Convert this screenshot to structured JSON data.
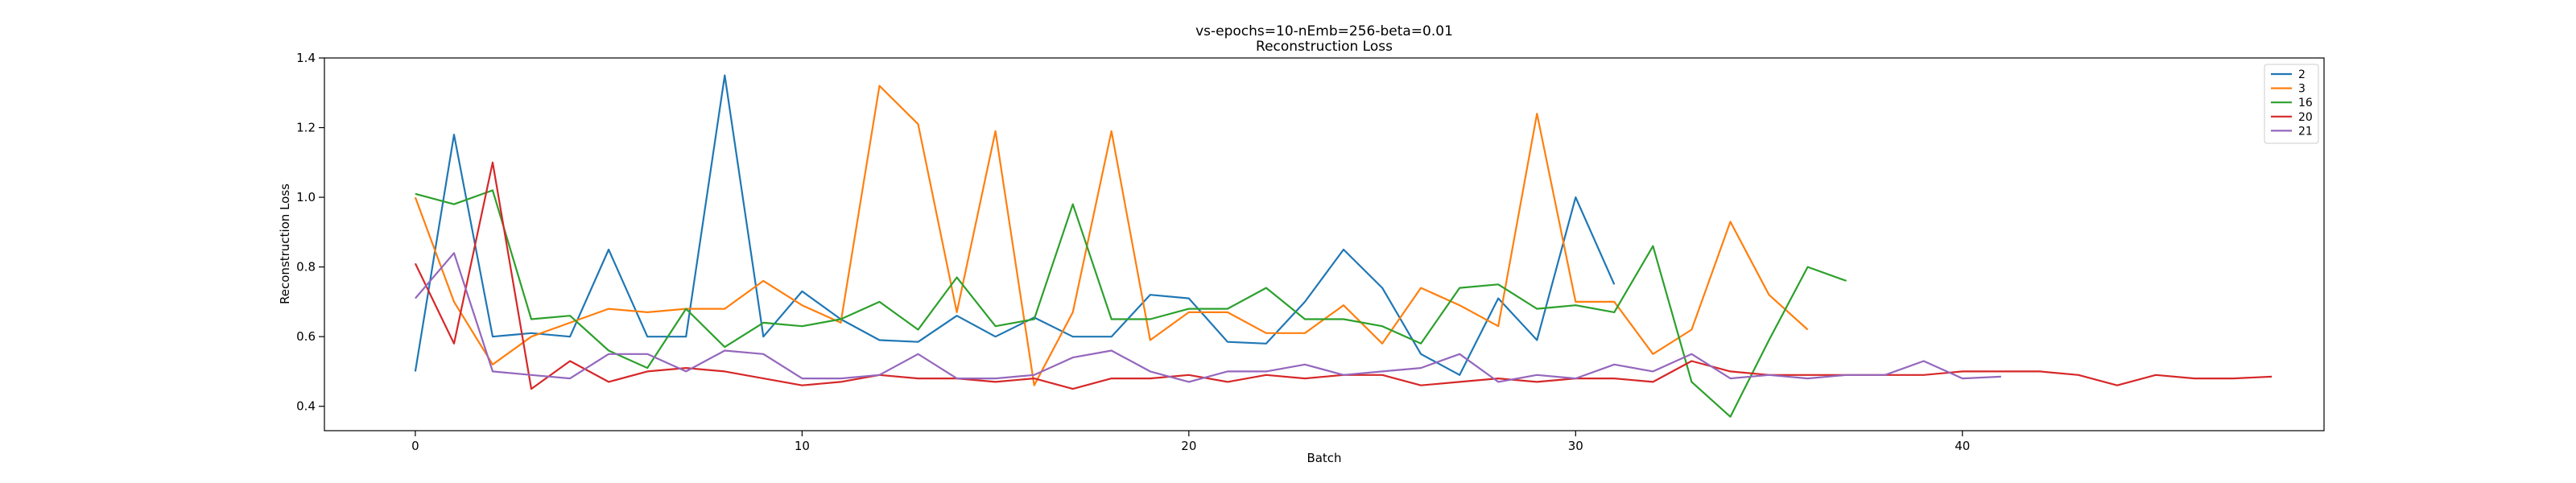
{
  "chart_data": {
    "type": "line",
    "title": "vs-epochs=10-nEmb=256-beta=0.01",
    "subtitle": "Reconstruction Loss",
    "xlabel": "Batch",
    "ylabel": "Reconstruction Loss",
    "xlim": [
      -2.35,
      49.35
    ],
    "ylim": [
      0.33,
      1.4
    ],
    "xticks": [
      0,
      10,
      20,
      30,
      40
    ],
    "yticks": [
      0.4,
      0.6,
      0.8,
      1.0,
      1.2,
      1.4
    ],
    "xtick_labels": [
      "0",
      "10",
      "20",
      "30",
      "40"
    ],
    "ytick_labels": [
      "0.4",
      "0.6",
      "0.8",
      "1.0",
      "1.2",
      "1.4"
    ],
    "grid": false,
    "legend_position": "top-right",
    "series": [
      {
        "name": "2",
        "color": "#1f77b4",
        "values": [
          0.5,
          1.18,
          0.6,
          0.61,
          0.6,
          0.85,
          0.6,
          0.6,
          1.35,
          0.6,
          0.73,
          0.65,
          0.59,
          0.585,
          0.66,
          0.6,
          0.655,
          0.6,
          0.6,
          0.72,
          0.71,
          0.585,
          0.58,
          0.7,
          0.85,
          0.74,
          0.55,
          0.49,
          0.71,
          0.59,
          1.0,
          0.75
        ]
      },
      {
        "name": "3",
        "color": "#ff7f0e",
        "values": [
          1.0,
          0.7,
          0.52,
          0.6,
          0.64,
          0.68,
          0.67,
          0.68,
          0.68,
          0.76,
          0.69,
          0.64,
          1.32,
          1.21,
          0.67,
          1.19,
          0.46,
          0.67,
          1.19,
          0.59,
          0.67,
          0.67,
          0.61,
          0.61,
          0.69,
          0.58,
          0.74,
          0.69,
          0.63,
          1.24,
          0.7,
          0.7,
          0.55,
          0.62,
          0.93,
          0.72,
          0.62
        ]
      },
      {
        "name": "16",
        "color": "#2ca02c",
        "values": [
          1.01,
          0.98,
          1.02,
          0.65,
          0.66,
          0.56,
          0.51,
          0.68,
          0.57,
          0.64,
          0.63,
          0.65,
          0.7,
          0.62,
          0.77,
          0.63,
          0.65,
          0.98,
          0.65,
          0.65,
          0.68,
          0.68,
          0.74,
          0.65,
          0.65,
          0.63,
          0.58,
          0.74,
          0.75,
          0.68,
          0.69,
          0.67,
          0.86,
          0.47,
          0.37,
          0.59,
          0.8,
          0.76
        ]
      },
      {
        "name": "20",
        "color": "#d62728",
        "values": [
          0.81,
          0.58,
          1.1,
          0.45,
          0.53,
          0.47,
          0.5,
          0.51,
          0.5,
          0.48,
          0.46,
          0.47,
          0.49,
          0.48,
          0.48,
          0.47,
          0.48,
          0.45,
          0.48,
          0.48,
          0.49,
          0.47,
          0.49,
          0.48,
          0.49,
          0.49,
          0.46,
          0.47,
          0.48,
          0.47,
          0.48,
          0.48,
          0.47,
          0.53,
          0.5,
          0.49,
          0.49,
          0.49,
          0.49,
          0.49,
          0.5,
          0.5,
          0.5,
          0.49,
          0.46,
          0.49,
          0.48,
          0.48,
          0.485
        ]
      },
      {
        "name": "21",
        "color": "#9467bd",
        "values": [
          0.71,
          0.84,
          0.5,
          0.49,
          0.48,
          0.55,
          0.55,
          0.5,
          0.56,
          0.55,
          0.48,
          0.48,
          0.49,
          0.55,
          0.48,
          0.48,
          0.49,
          0.54,
          0.56,
          0.5,
          0.47,
          0.5,
          0.5,
          0.52,
          0.49,
          0.5,
          0.51,
          0.55,
          0.47,
          0.49,
          0.48,
          0.52,
          0.5,
          0.55,
          0.48,
          0.49,
          0.48,
          0.49,
          0.49,
          0.53,
          0.48,
          0.485
        ]
      }
    ]
  }
}
